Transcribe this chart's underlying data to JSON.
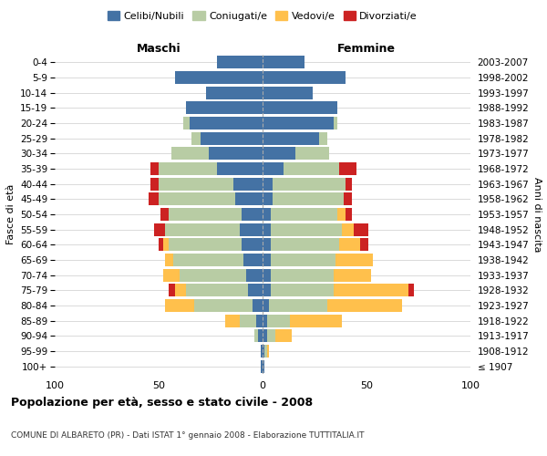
{
  "age_groups": [
    "100+",
    "95-99",
    "90-94",
    "85-89",
    "80-84",
    "75-79",
    "70-74",
    "65-69",
    "60-64",
    "55-59",
    "50-54",
    "45-49",
    "40-44",
    "35-39",
    "30-34",
    "25-29",
    "20-24",
    "15-19",
    "10-14",
    "5-9",
    "0-4"
  ],
  "birth_years": [
    "≤ 1907",
    "1908-1912",
    "1913-1917",
    "1918-1922",
    "1923-1927",
    "1928-1932",
    "1933-1937",
    "1938-1942",
    "1943-1947",
    "1948-1952",
    "1953-1957",
    "1958-1962",
    "1963-1967",
    "1968-1972",
    "1973-1977",
    "1978-1982",
    "1983-1987",
    "1988-1992",
    "1993-1997",
    "1998-2002",
    "2003-2007"
  ],
  "males": {
    "celibi": [
      1,
      1,
      2,
      3,
      5,
      7,
      8,
      9,
      10,
      11,
      10,
      13,
      14,
      22,
      26,
      30,
      35,
      37,
      27,
      42,
      22
    ],
    "coniugati": [
      0,
      0,
      2,
      8,
      28,
      30,
      32,
      34,
      35,
      36,
      35,
      37,
      36,
      28,
      18,
      4,
      3,
      0,
      0,
      0,
      0
    ],
    "vedovi": [
      0,
      0,
      0,
      7,
      14,
      5,
      8,
      4,
      3,
      0,
      0,
      0,
      0,
      0,
      0,
      0,
      0,
      0,
      0,
      0,
      0
    ],
    "divorziati": [
      0,
      0,
      0,
      0,
      0,
      3,
      0,
      0,
      2,
      5,
      4,
      5,
      4,
      4,
      0,
      0,
      0,
      0,
      0,
      0,
      0
    ]
  },
  "females": {
    "nubili": [
      1,
      1,
      2,
      2,
      3,
      4,
      4,
      4,
      4,
      4,
      4,
      5,
      5,
      10,
      16,
      27,
      34,
      36,
      24,
      40,
      20
    ],
    "coniugate": [
      0,
      1,
      4,
      11,
      28,
      30,
      30,
      31,
      33,
      34,
      32,
      34,
      35,
      27,
      16,
      4,
      2,
      0,
      0,
      0,
      0
    ],
    "vedove": [
      0,
      1,
      8,
      25,
      36,
      36,
      18,
      18,
      10,
      6,
      4,
      0,
      0,
      0,
      0,
      0,
      0,
      0,
      0,
      0,
      0
    ],
    "divorziate": [
      0,
      0,
      0,
      0,
      0,
      3,
      0,
      0,
      4,
      7,
      3,
      4,
      3,
      8,
      0,
      0,
      0,
      0,
      0,
      0,
      0
    ]
  },
  "colors": {
    "celibi": "#4472a4",
    "coniugati": "#b8cca4",
    "vedovi": "#ffc04c",
    "divorziati": "#cc2222"
  },
  "xlim": 100,
  "title": "Popolazione per età, sesso e stato civile - 2008",
  "subtitle": "COMUNE DI ALBARETO (PR) - Dati ISTAT 1° gennaio 2008 - Elaborazione TUTTITALIA.IT",
  "ylabel_left": "Fasce di età",
  "ylabel_right": "Anni di nascita",
  "xlabel_left": "Maschi",
  "xlabel_right": "Femmine"
}
